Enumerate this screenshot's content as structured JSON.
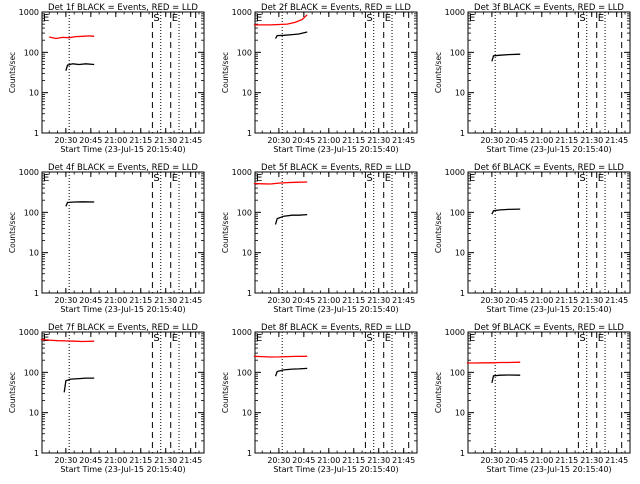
{
  "layout": {
    "rows": 3,
    "cols": 3
  },
  "common": {
    "xlabel": "Start Time (23-Jul-15 20:15:40)",
    "ylabel": "Counts/sec",
    "x_ticks": [
      "20:30",
      "20:45",
      "21:00",
      "21:15",
      "21:30",
      "21:45"
    ],
    "y_ticks": [
      "1",
      "10",
      "100",
      "1000"
    ],
    "line_labels": {
      "E": "E",
      "S": "S"
    }
  },
  "chart_data": [
    {
      "type": "line",
      "title": "Det 1f BLACK = Events, RED = LLD",
      "yscale": "log",
      "ylim": [
        1,
        1000
      ],
      "xlim": [
        "20:15:40",
        "21:53"
      ],
      "dotted_x": [
        "20:32",
        "21:27",
        "21:38"
      ],
      "dashed_x": [
        "21:22",
        "21:33",
        "21:48"
      ],
      "series": [
        {
          "color": "#ff0000",
          "x": [
            "20:20",
            "20:24",
            "20:28",
            "20:32",
            "20:36",
            "20:40",
            "20:44",
            "20:47"
          ],
          "values": [
            240,
            220,
            235,
            230,
            245,
            250,
            255,
            250
          ]
        },
        {
          "color": "#000000",
          "x": [
            "20:30",
            "20:31",
            "20:34",
            "20:38",
            "20:42",
            "20:47"
          ],
          "values": [
            35,
            48,
            52,
            50,
            52,
            50
          ]
        }
      ]
    },
    {
      "type": "line",
      "title": "Det 2f BLACK = Events, RED = LLD",
      "yscale": "log",
      "ylim": [
        1,
        1000
      ],
      "xlim": [
        "20:15:40",
        "21:53"
      ],
      "dotted_x": [
        "20:32",
        "21:27",
        "21:38"
      ],
      "dashed_x": [
        "21:22",
        "21:33",
        "21:48"
      ],
      "series": [
        {
          "color": "#ff0000",
          "x": [
            "20:15",
            "20:20",
            "20:25",
            "20:30",
            "20:35",
            "20:40",
            "20:44",
            "20:47"
          ],
          "values": [
            480,
            480,
            480,
            490,
            500,
            560,
            650,
            850
          ]
        },
        {
          "color": "#000000",
          "x": [
            "20:28",
            "20:29",
            "20:33",
            "20:38",
            "20:42",
            "20:47"
          ],
          "values": [
            220,
            260,
            265,
            275,
            285,
            320
          ]
        }
      ]
    },
    {
      "type": "line",
      "title": "Det 3f BLACK = Events, RED = LLD",
      "yscale": "log",
      "ylim": [
        1,
        1000
      ],
      "xlim": [
        "20:15:40",
        "21:53"
      ],
      "dotted_x": [
        "20:32",
        "21:27",
        "21:38"
      ],
      "dashed_x": [
        "21:22",
        "21:33",
        "21:48"
      ],
      "series": [
        {
          "color": "#000000",
          "x": [
            "20:30",
            "20:31",
            "20:35",
            "20:40",
            "20:47"
          ],
          "values": [
            60,
            82,
            85,
            88,
            90
          ]
        }
      ]
    },
    {
      "type": "line",
      "title": "Det 4f BLACK = Events, RED = LLD",
      "yscale": "log",
      "ylim": [
        1,
        1000
      ],
      "xlim": [
        "20:15:40",
        "21:53"
      ],
      "dotted_x": [
        "20:32",
        "21:27",
        "21:38"
      ],
      "dashed_x": [
        "21:22",
        "21:33",
        "21:48"
      ],
      "series": [
        {
          "color": "#000000",
          "x": [
            "20:30",
            "20:31",
            "20:35",
            "20:40",
            "20:47"
          ],
          "values": [
            140,
            175,
            180,
            182,
            180
          ]
        }
      ]
    },
    {
      "type": "line",
      "title": "Det 5f BLACK = Events, RED = LLD",
      "yscale": "log",
      "ylim": [
        1,
        1000
      ],
      "xlim": [
        "20:15:40",
        "21:53"
      ],
      "dotted_x": [
        "20:32",
        "21:27",
        "21:38"
      ],
      "dashed_x": [
        "21:22",
        "21:33",
        "21:48"
      ],
      "series": [
        {
          "color": "#ff0000",
          "x": [
            "20:15",
            "20:20",
            "20:25",
            "20:30",
            "20:35",
            "20:40",
            "20:47"
          ],
          "values": [
            520,
            510,
            505,
            530,
            545,
            555,
            565
          ]
        },
        {
          "color": "#000000",
          "x": [
            "20:28",
            "20:29",
            "20:33",
            "20:38",
            "20:42",
            "20:47"
          ],
          "values": [
            50,
            70,
            80,
            85,
            85,
            88
          ]
        }
      ]
    },
    {
      "type": "line",
      "title": "Det 6f BLACK = Events, RED = LLD",
      "yscale": "log",
      "ylim": [
        1,
        1000
      ],
      "xlim": [
        "20:15:40",
        "21:53"
      ],
      "dotted_x": [
        "20:32",
        "21:27",
        "21:38"
      ],
      "dashed_x": [
        "21:22",
        "21:33",
        "21:48"
      ],
      "series": [
        {
          "color": "#000000",
          "x": [
            "20:30",
            "20:31",
            "20:35",
            "20:40",
            "20:47"
          ],
          "values": [
            90,
            110,
            115,
            118,
            120
          ]
        }
      ]
    },
    {
      "type": "line",
      "title": "Det 7f BLACK = Events, RED = LLD",
      "yscale": "log",
      "ylim": [
        1,
        1000
      ],
      "xlim": [
        "20:15:40",
        "21:53"
      ],
      "dotted_x": [
        "20:32",
        "21:27",
        "21:38"
      ],
      "dashed_x": [
        "21:22",
        "21:33",
        "21:48"
      ],
      "series": [
        {
          "color": "#ff0000",
          "x": [
            "20:15",
            "20:20",
            "20:25",
            "20:30",
            "20:35",
            "20:40",
            "20:47"
          ],
          "values": [
            650,
            630,
            610,
            600,
            590,
            580,
            590
          ]
        },
        {
          "color": "#000000",
          "x": [
            "20:29",
            "20:30",
            "20:33",
            "20:38",
            "20:42",
            "20:47"
          ],
          "values": [
            32,
            62,
            68,
            70,
            72,
            72
          ]
        }
      ]
    },
    {
      "type": "line",
      "title": "Det 8f BLACK = Events, RED = LLD",
      "yscale": "log",
      "ylim": [
        1,
        1000
      ],
      "xlim": [
        "20:15:40",
        "21:53"
      ],
      "dotted_x": [
        "20:32",
        "21:27",
        "21:38"
      ],
      "dashed_x": [
        "21:22",
        "21:33",
        "21:48"
      ],
      "series": [
        {
          "color": "#ff0000",
          "x": [
            "20:15",
            "20:20",
            "20:25",
            "20:30",
            "20:35",
            "20:40",
            "20:47"
          ],
          "values": [
            250,
            245,
            240,
            242,
            245,
            248,
            250
          ]
        },
        {
          "color": "#000000",
          "x": [
            "20:28",
            "20:29",
            "20:33",
            "20:38",
            "20:42",
            "20:47"
          ],
          "values": [
            80,
            105,
            115,
            120,
            122,
            125
          ]
        }
      ]
    },
    {
      "type": "line",
      "title": "Det 9f BLACK = Events, RED = LLD",
      "yscale": "log",
      "ylim": [
        1,
        1000
      ],
      "xlim": [
        "20:15:40",
        "21:53"
      ],
      "dotted_x": [
        "20:32",
        "21:27",
        "21:38"
      ],
      "dashed_x": [
        "21:22",
        "21:33",
        "21:48"
      ],
      "series": [
        {
          "color": "#ff0000",
          "x": [
            "20:15",
            "20:20",
            "20:25",
            "20:30",
            "20:35",
            "20:40",
            "20:47"
          ],
          "values": [
            170,
            170,
            172,
            172,
            175,
            175,
            178
          ]
        },
        {
          "color": "#000000",
          "x": [
            "20:30",
            "20:31",
            "20:35",
            "20:40",
            "20:47"
          ],
          "values": [
            55,
            82,
            85,
            86,
            85
          ]
        }
      ]
    }
  ]
}
